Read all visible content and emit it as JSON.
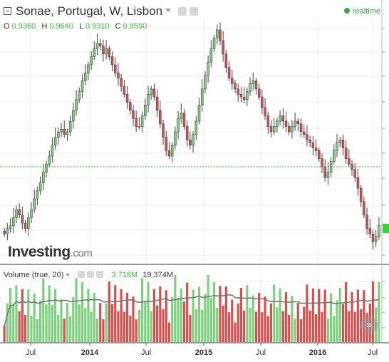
{
  "header": {
    "title": "Sonae, Portugal, W, Lisbon",
    "realtime_label": "realtime"
  },
  "ohlc": {
    "o_label": "O",
    "o_value": "0.9360",
    "h_label": "H",
    "h_value": "0.9640",
    "l_label": "L",
    "l_value": "0.9310",
    "c_label": "C",
    "c_value": "0.9590"
  },
  "logo": {
    "main": "Investing",
    "suffix": ".com"
  },
  "volume": {
    "label": "Volume (true, 20)",
    "current": "3.718M",
    "average": "19.374M"
  },
  "colors": {
    "up": "#7ed07e",
    "down": "#d65050",
    "accent_green": "#3fb63f",
    "ma_line": "#777777"
  },
  "icons": [
    "collapse-icon",
    "settings-icon",
    "close-icon",
    "realtime-dot-icon",
    "scroll-right-icon"
  ],
  "chart_data": [
    {
      "type": "candlestick",
      "title": "Sonae, Portugal, W, Lisbon",
      "x_ticks": [
        "Jul",
        "2014",
        "Jul",
        "2015",
        "Jul",
        "2016",
        "Jul"
      ],
      "y_range": [
        0.84,
        1.69
      ],
      "horizontal_line": 1.18,
      "last_close": 0.959,
      "closes": [
        0.93,
        0.95,
        0.96,
        0.99,
        1.02,
        1.0,
        0.97,
        0.95,
        0.99,
        1.02,
        1.06,
        1.09,
        1.12,
        1.16,
        1.19,
        1.22,
        1.26,
        1.29,
        1.31,
        1.32,
        1.3,
        1.31,
        1.35,
        1.39,
        1.43,
        1.46,
        1.5,
        1.53,
        1.56,
        1.59,
        1.62,
        1.64,
        1.63,
        1.6,
        1.62,
        1.59,
        1.56,
        1.53,
        1.51,
        1.48,
        1.45,
        1.42,
        1.39,
        1.36,
        1.33,
        1.33,
        1.37,
        1.41,
        1.45,
        1.47,
        1.44,
        1.39,
        1.34,
        1.29,
        1.24,
        1.22,
        1.26,
        1.31,
        1.36,
        1.38,
        1.33,
        1.28,
        1.26,
        1.3,
        1.35,
        1.41,
        1.47,
        1.52,
        1.57,
        1.62,
        1.66,
        1.69,
        1.65,
        1.6,
        1.55,
        1.51,
        1.49,
        1.47,
        1.45,
        1.44,
        1.43,
        1.46,
        1.49,
        1.5,
        1.47,
        1.44,
        1.4,
        1.37,
        1.33,
        1.31,
        1.33,
        1.35,
        1.37,
        1.35,
        1.33,
        1.31,
        1.33,
        1.35,
        1.34,
        1.31,
        1.3,
        1.28,
        1.27,
        1.25,
        1.24,
        1.21,
        1.18,
        1.14,
        1.16,
        1.2,
        1.24,
        1.27,
        1.28,
        1.25,
        1.21,
        1.19,
        1.17,
        1.14,
        1.1,
        1.05,
        1.0,
        0.95,
        0.93,
        0.9,
        0.92,
        0.96
      ],
      "volume_ma": "line",
      "volume_note": "volume bars colored by candle direction"
    }
  ]
}
